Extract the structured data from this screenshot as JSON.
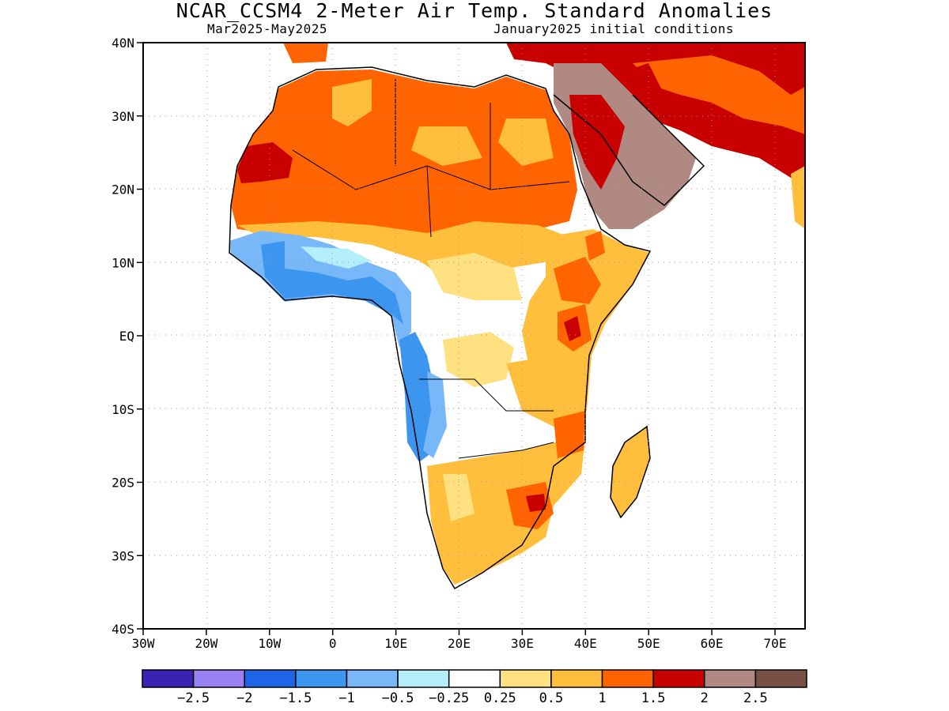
{
  "title": "NCAR_CCSM4 2-Meter Air Temp. Standard Anomalies",
  "subtitle_left": "Mar2025-May2025",
  "subtitle_right": "January2025 initial conditions",
  "axes": {
    "lat_labels": [
      "40N",
      "30N",
      "20N",
      "10N",
      "EQ",
      "10S",
      "20S",
      "30S",
      "40S"
    ],
    "lon_labels": [
      "30W",
      "20W",
      "10W",
      "0",
      "10E",
      "20E",
      "30E",
      "40E",
      "50E",
      "60E",
      "70E"
    ],
    "lat_range": [
      -40,
      40
    ],
    "lon_range": [
      -30,
      75
    ],
    "grid": true
  },
  "colorbar": {
    "colors": [
      "#3b22b4",
      "#9a82f5",
      "#1e64e6",
      "#3c96f0",
      "#78b8f8",
      "#b4eefa",
      "#ffffff",
      "#ffe182",
      "#ffbe3c",
      "#ff6400",
      "#c80000",
      "#b08a82",
      "#785046"
    ],
    "labels": [
      "-2.5",
      "-2",
      "-1.5",
      "-1",
      "-0.5",
      "-0.25",
      "0.25",
      "0.5",
      "1",
      "1.5",
      "2",
      "2.5"
    ]
  },
  "map": {
    "regions": [
      {
        "name": "north-africa-anomaly",
        "category": "1 to 1.5"
      },
      {
        "name": "northwest-africa-anomaly",
        "category": "1.5 to 2"
      },
      {
        "name": "arabia-anomaly",
        "category": "2 to 2.5"
      },
      {
        "name": "iran-anomaly",
        "category": "1.5 to 2"
      },
      {
        "name": "sahel-anomaly",
        "category": "0.5 to 1"
      },
      {
        "name": "west-africa-coast-anomaly",
        "category": "-1 to -0.25"
      },
      {
        "name": "east-africa-anomaly",
        "category": "0.5 to 1.5"
      },
      {
        "name": "southern-africa-anomaly",
        "category": "0.5 to 1.5"
      },
      {
        "name": "madagascar-anomaly",
        "category": "0.5 to 1"
      },
      {
        "name": "angola-coast-anomaly",
        "category": "-1 to -0.25"
      }
    ]
  }
}
